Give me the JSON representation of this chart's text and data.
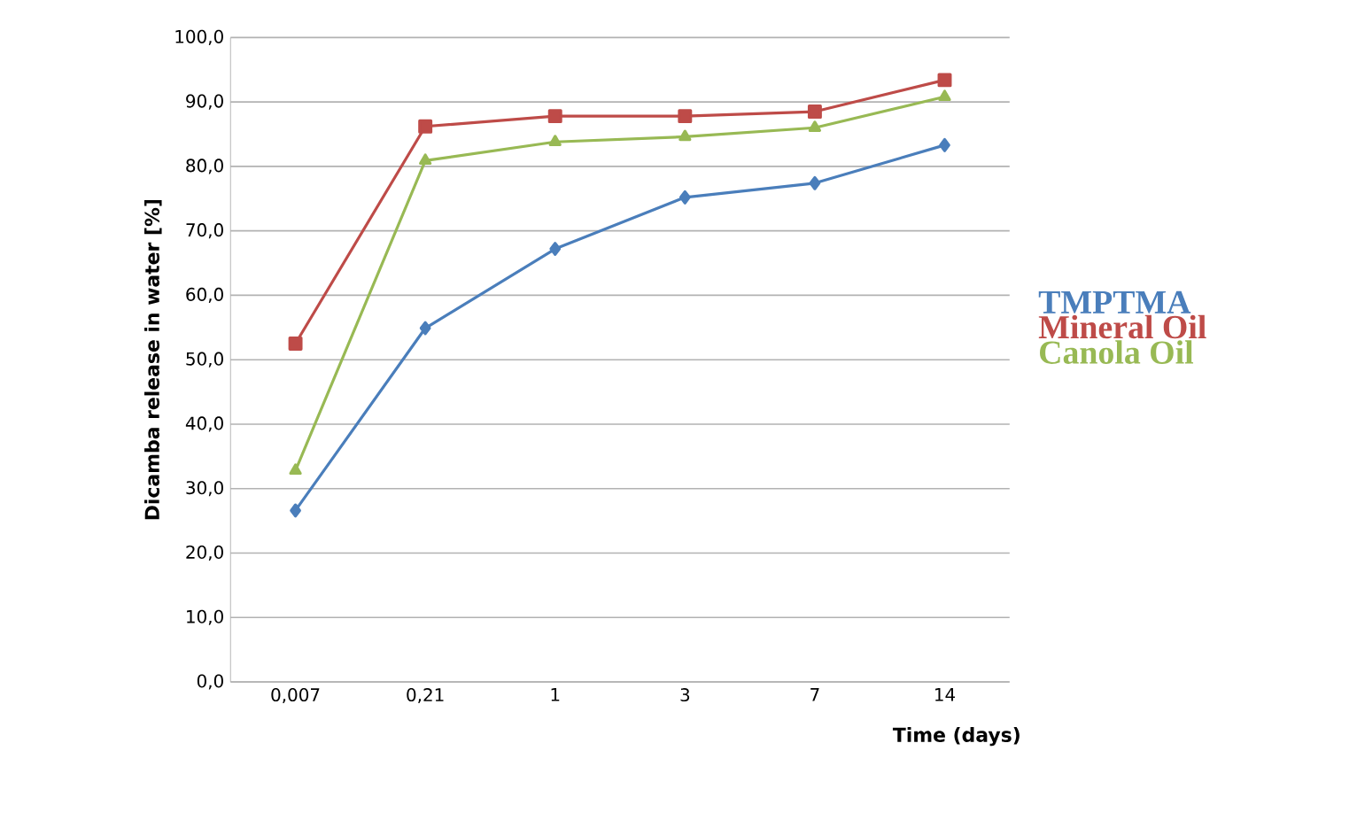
{
  "chart_data": {
    "type": "line",
    "xlabel": "Time (days)",
    "ylabel": "Dicamba release in water [%]",
    "categories": [
      "0,007",
      "0,21",
      "1",
      "3",
      "7",
      "14"
    ],
    "ylim": [
      0,
      100
    ],
    "yticks": [
      {
        "value": 0,
        "label": "0,0"
      },
      {
        "value": 10,
        "label": "10,0"
      },
      {
        "value": 20,
        "label": "20,0"
      },
      {
        "value": 30,
        "label": "30,0"
      },
      {
        "value": 40,
        "label": "40,0"
      },
      {
        "value": 50,
        "label": "50,0"
      },
      {
        "value": 60,
        "label": "60,0"
      },
      {
        "value": 70,
        "label": "70,0"
      },
      {
        "value": 80,
        "label": "80,0"
      },
      {
        "value": 90,
        "label": "90,0"
      },
      {
        "value": 100,
        "label": "100,0"
      }
    ],
    "grid": "y",
    "legend": "right",
    "series": [
      {
        "name": "TMPTMA",
        "color": "#4a7ebb",
        "marker": "diamond",
        "values": [
          26.6,
          54.9,
          67.2,
          75.2,
          77.4,
          83.3
        ]
      },
      {
        "name": "Mineral Oil",
        "color": "#be4b48",
        "marker": "square",
        "values": [
          52.5,
          86.2,
          87.8,
          87.8,
          88.5,
          93.4
        ]
      },
      {
        "name": "Canola Oil",
        "color": "#98b954",
        "marker": "triangle",
        "values": [
          32.8,
          80.9,
          83.8,
          84.6,
          86.0,
          90.8
        ]
      }
    ]
  }
}
